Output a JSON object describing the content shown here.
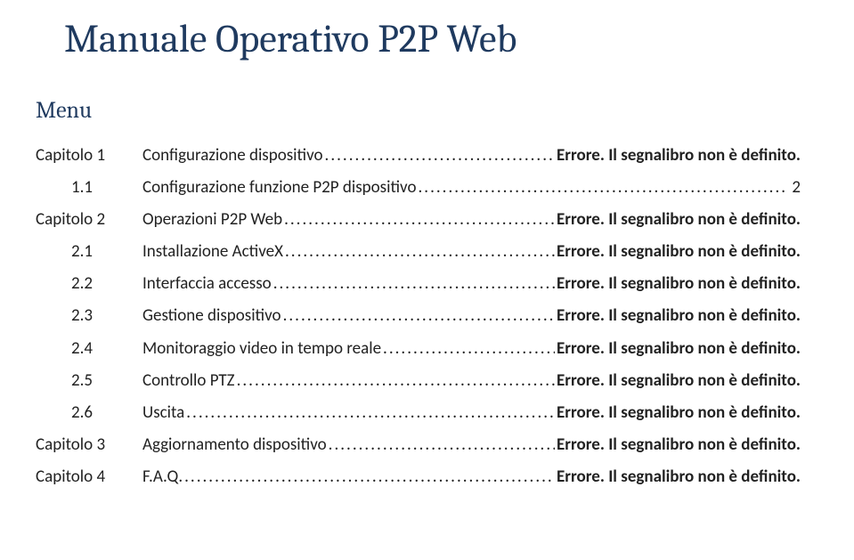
{
  "title": "Manuale Operativo P2P Web",
  "menu_heading": "Menu",
  "leader_dots": "................................................................................................................................................................................................",
  "toc": [
    {
      "level": "chapter",
      "label": "Capitolo 1",
      "text": "Configurazione dispositivo",
      "ref": "Errore. Il segnalibro non è definito.",
      "is_error": true
    },
    {
      "level": "sub",
      "label": "1.1",
      "text": "Configurazione funzione P2P dispositivo",
      "ref": "2",
      "is_error": false
    },
    {
      "level": "chapter",
      "label": "Capitolo 2",
      "text": "Operazioni P2P Web",
      "ref": "Errore. Il segnalibro non è definito.",
      "is_error": true
    },
    {
      "level": "sub",
      "label": "2.1",
      "text": "Installazione ActiveX",
      "ref": "Errore. Il segnalibro non è definito.",
      "is_error": true
    },
    {
      "level": "sub",
      "label": "2.2",
      "text": "Interfaccia accesso",
      "ref": "Errore. Il segnalibro non è definito.",
      "is_error": true
    },
    {
      "level": "sub",
      "label": "2.3",
      "text": "Gestione dispositivo",
      "ref": "Errore. Il segnalibro non è definito.",
      "is_error": true
    },
    {
      "level": "sub",
      "label": "2.4",
      "text": "Monitoraggio video in tempo reale",
      "ref": "Errore. Il segnalibro non è definito.",
      "is_error": true
    },
    {
      "level": "sub",
      "label": "2.5",
      "text": "Controllo PTZ",
      "ref": "Errore. Il segnalibro non è definito.",
      "is_error": true
    },
    {
      "level": "sub",
      "label": "2.6",
      "text": "Uscita",
      "ref": "Errore. Il segnalibro non è definito.",
      "is_error": true
    },
    {
      "level": "chapter",
      "label": "Capitolo 3",
      "text": "Aggiornamento dispositivo",
      "ref": "Errore. Il segnalibro non è definito.",
      "is_error": true
    },
    {
      "level": "chapter",
      "label": "Capitolo 4",
      "text": "F.A.Q.",
      "ref": "Errore. Il segnalibro non è definito.",
      "is_error": true
    }
  ]
}
